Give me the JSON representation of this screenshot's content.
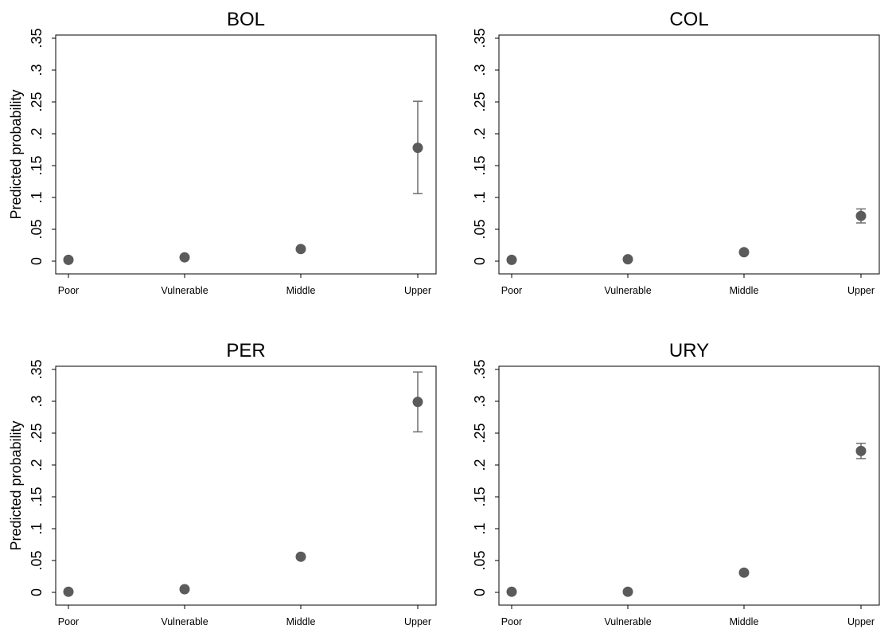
{
  "chart_data": [
    {
      "type": "scatter",
      "title": "BOL",
      "categories": [
        "Poor",
        "Vulnerable",
        "Middle",
        "Upper"
      ],
      "values": [
        0.002,
        0.006,
        0.019,
        0.178
      ],
      "ci_lower": [
        0.001,
        0.004,
        0.017,
        0.106
      ],
      "ci_upper": [
        0.003,
        0.008,
        0.022,
        0.251
      ],
      "ylabel": "Predicted probability",
      "ylim": [
        0,
        0.35
      ],
      "yticks": [
        0,
        0.05,
        0.1,
        0.15,
        0.2,
        0.25,
        0.3,
        0.35
      ],
      "ytick_labels": [
        "0",
        ".05",
        ".1",
        ".15",
        ".2",
        ".25",
        ".3",
        ".35"
      ]
    },
    {
      "type": "scatter",
      "title": "COL",
      "categories": [
        "Poor",
        "Vulnerable",
        "Middle",
        "Upper"
      ],
      "values": [
        0.002,
        0.003,
        0.014,
        0.071
      ],
      "ci_lower": [
        0.001,
        0.002,
        0.012,
        0.06
      ],
      "ci_upper": [
        0.003,
        0.004,
        0.016,
        0.082
      ],
      "ylabel": "",
      "ylim": [
        0,
        0.35
      ],
      "yticks": [
        0,
        0.05,
        0.1,
        0.15,
        0.2,
        0.25,
        0.3,
        0.35
      ],
      "ytick_labels": [
        "0",
        ".05",
        ".1",
        ".15",
        ".2",
        ".25",
        ".3",
        ".35"
      ]
    },
    {
      "type": "scatter",
      "title": "PER",
      "categories": [
        "Poor",
        "Vulnerable",
        "Middle",
        "Upper"
      ],
      "values": [
        0.001,
        0.005,
        0.056,
        0.299
      ],
      "ci_lower": [
        0.0,
        0.004,
        0.053,
        0.252
      ],
      "ci_upper": [
        0.002,
        0.006,
        0.059,
        0.346
      ],
      "ylabel": "Predicted probability",
      "ylim": [
        0,
        0.35
      ],
      "yticks": [
        0,
        0.05,
        0.1,
        0.15,
        0.2,
        0.25,
        0.3,
        0.35
      ],
      "ytick_labels": [
        "0",
        ".05",
        ".1",
        ".15",
        ".2",
        ".25",
        ".3",
        ".35"
      ]
    },
    {
      "type": "scatter",
      "title": "URY",
      "categories": [
        "Poor",
        "Vulnerable",
        "Middle",
        "Upper"
      ],
      "values": [
        0.001,
        0.001,
        0.031,
        0.222
      ],
      "ci_lower": [
        0.0,
        0.0,
        0.029,
        0.21
      ],
      "ci_upper": [
        0.002,
        0.002,
        0.033,
        0.234
      ],
      "ylabel": "",
      "ylim": [
        0,
        0.35
      ],
      "yticks": [
        0,
        0.05,
        0.1,
        0.15,
        0.2,
        0.25,
        0.3,
        0.35
      ],
      "ytick_labels": [
        "0",
        ".05",
        ".1",
        ".15",
        ".2",
        ".25",
        ".3",
        ".35"
      ]
    }
  ],
  "style": {
    "marker_color": "#5b5b5b",
    "errorbar_color": "#6e6e6e",
    "axis_color": "#000000"
  }
}
